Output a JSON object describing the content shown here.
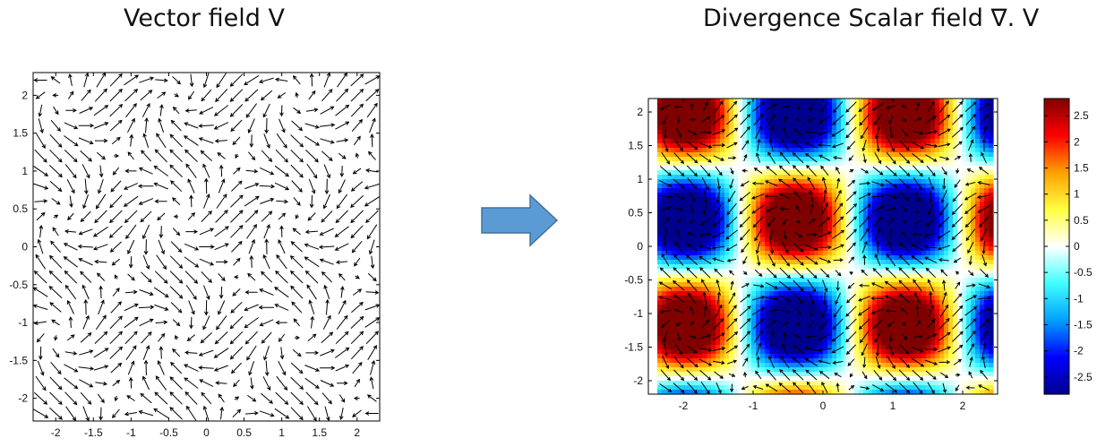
{
  "titles": {
    "left": "Vector field V",
    "right": "Divergence Scalar field ∇. V"
  },
  "colors": {
    "arrow": "#000000",
    "flow_arrow": "#5B9BD5",
    "flow_arrow_border": "#41719C",
    "colormap": [
      "#00008f",
      "#0000ff",
      "#00a0ff",
      "#40ffff",
      "#ffffff",
      "#ffff40",
      "#ffa000",
      "#ff0000",
      "#800000"
    ]
  },
  "chart_data": [
    {
      "type": "quiver",
      "title": "Vector field V",
      "field": "Vx = cos(2x - 2y), Vy = sin(2x + 2y)",
      "xlim": [
        -2.3,
        2.3
      ],
      "ylim": [
        -2.3,
        2.3
      ],
      "xticks": [
        "-2",
        "-1.5",
        "-1",
        "-0.5",
        "0",
        "0.5",
        "1",
        "1.5",
        "2"
      ],
      "xtick_values": [
        -2,
        -1.5,
        -1,
        -0.5,
        0,
        0.5,
        1,
        1.5,
        2
      ],
      "yticks": [
        "2",
        "1.5",
        "1",
        "0.5",
        "0",
        "-0.5",
        "-1",
        "-1.5",
        "-2"
      ],
      "ytick_values": [
        2,
        1.5,
        1,
        0.5,
        0,
        -0.5,
        -1,
        -1.5,
        -2
      ],
      "grid": false
    },
    {
      "type": "heatmap",
      "title": "Divergence Scalar field ∇. V",
      "field": "div V = -2 sin(2x - 2y) + 2 cos(2x + 2y)",
      "xlim": [
        -2.5,
        2.5
      ],
      "ylim": [
        -2.2,
        2.2
      ],
      "xticks": [
        "-2",
        "-1",
        "0",
        "1",
        "2"
      ],
      "xtick_values": [
        -2,
        -1,
        0,
        1,
        2
      ],
      "yticks": [
        "2",
        "1.5",
        "1",
        "0.5",
        "0",
        "-0.5",
        "-1",
        "-1.5",
        "-2"
      ],
      "ytick_values": [
        2,
        1.5,
        1,
        0.5,
        0,
        -0.5,
        -1,
        -1.5,
        -2
      ],
      "colorbar": {
        "range": [
          -2.83,
          2.83
        ],
        "ticks": [
          "2.5",
          "2",
          "1.5",
          "1",
          "0.5",
          "0",
          "-0.5",
          "-1",
          "-1.5",
          "-2",
          "-2.5"
        ],
        "tick_values": [
          2.5,
          2,
          1.5,
          1,
          0.5,
          0,
          -0.5,
          -1,
          -1.5,
          -2,
          -2.5
        ]
      },
      "overlay": "quiver of V",
      "grid": false
    }
  ]
}
